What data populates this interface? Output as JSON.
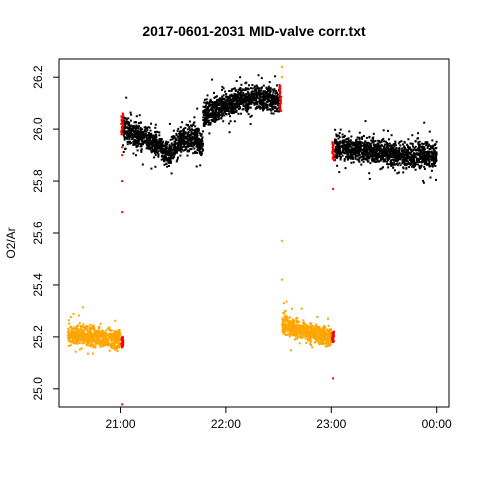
{
  "chart_data": {
    "type": "scatter",
    "title": "2017-0601-2031 MID-valve corr.txt",
    "xlabel": "",
    "ylabel": "O2/Ar",
    "xlim": [
      "20:25",
      "00:07"
    ],
    "ylim": [
      24.93,
      26.27
    ],
    "x_ticks": [
      "21:00",
      "22:00",
      "23:00",
      "00:00"
    ],
    "y_ticks": [
      "25.0",
      "25.2",
      "25.4",
      "25.6",
      "25.8",
      "26.0",
      "26.2"
    ],
    "grid": false,
    "legend": "none",
    "colors": {
      "black": "#000000",
      "orange": "#FFA500",
      "red": "#FF0000"
    },
    "series": [
      {
        "color": "black",
        "segments": [
          {
            "x_start": "21:01",
            "x_end": "21:20",
            "trend": [
              [
                "21:01",
                26.01
              ],
              [
                "21:10",
                25.97
              ],
              [
                "21:20",
                25.95
              ]
            ],
            "spread": 0.04
          },
          {
            "x_start": "21:20",
            "x_end": "21:47",
            "trend": [
              [
                "21:20",
                25.95
              ],
              [
                "21:27",
                25.9
              ],
              [
                "21:33",
                25.95
              ],
              [
                "21:40",
                25.97
              ],
              [
                "21:47",
                25.94
              ]
            ],
            "spread": 0.04
          },
          {
            "x_start": "21:47",
            "x_end": "22:31",
            "trend": [
              [
                "21:47",
                26.05
              ],
              [
                "21:55",
                26.08
              ],
              [
                "22:03",
                26.1
              ],
              [
                "22:10",
                26.12
              ],
              [
                "22:20",
                26.12
              ],
              [
                "22:31",
                26.11
              ]
            ],
            "spread": 0.04
          },
          {
            "x_start": "23:02",
            "x_end": "00:00",
            "trend": [
              [
                "23:02",
                25.93
              ],
              [
                "23:20",
                25.92
              ],
              [
                "23:40",
                25.9
              ],
              [
                "00:00",
                25.9
              ]
            ],
            "spread": 0.04
          }
        ]
      },
      {
        "color": "orange",
        "segments": [
          {
            "x_start": "20:30",
            "x_end": "21:00",
            "trend": [
              [
                "20:30",
                25.21
              ],
              [
                "21:00",
                25.19
              ]
            ],
            "spread": 0.03
          },
          {
            "x_start": "22:32",
            "x_end": "23:00",
            "trend": [
              [
                "22:32",
                25.25
              ],
              [
                "22:45",
                25.22
              ],
              [
                "23:00",
                25.2
              ]
            ],
            "spread": 0.03
          }
        ],
        "points": [
          {
            "x": "22:32",
            "y": 26.24
          },
          {
            "x": "22:32",
            "y": 26.2
          },
          {
            "x": "22:32",
            "y": 25.57
          },
          {
            "x": "22:32",
            "y": 25.42
          },
          {
            "x": "22:33",
            "y": 25.33
          },
          {
            "x": "22:34",
            "y": 25.3
          }
        ]
      },
      {
        "color": "red",
        "bands": [
          {
            "x": "21:01",
            "y_min": 25.98,
            "y_max": 26.06
          },
          {
            "x": "21:01",
            "y_min": 25.16,
            "y_max": 25.2
          },
          {
            "x": "22:31",
            "y_min": 26.07,
            "y_max": 26.17
          },
          {
            "x": "23:01",
            "y_min": 25.88,
            "y_max": 25.95
          },
          {
            "x": "23:01",
            "y_min": 25.18,
            "y_max": 25.22
          }
        ],
        "points": [
          {
            "x": "21:01",
            "y": 25.93
          },
          {
            "x": "21:01",
            "y": 25.9
          },
          {
            "x": "21:01",
            "y": 25.8
          },
          {
            "x": "21:01",
            "y": 25.68
          },
          {
            "x": "21:01",
            "y": 24.94
          },
          {
            "x": "23:01",
            "y": 25.77
          },
          {
            "x": "23:01",
            "y": 25.04
          }
        ]
      }
    ]
  }
}
